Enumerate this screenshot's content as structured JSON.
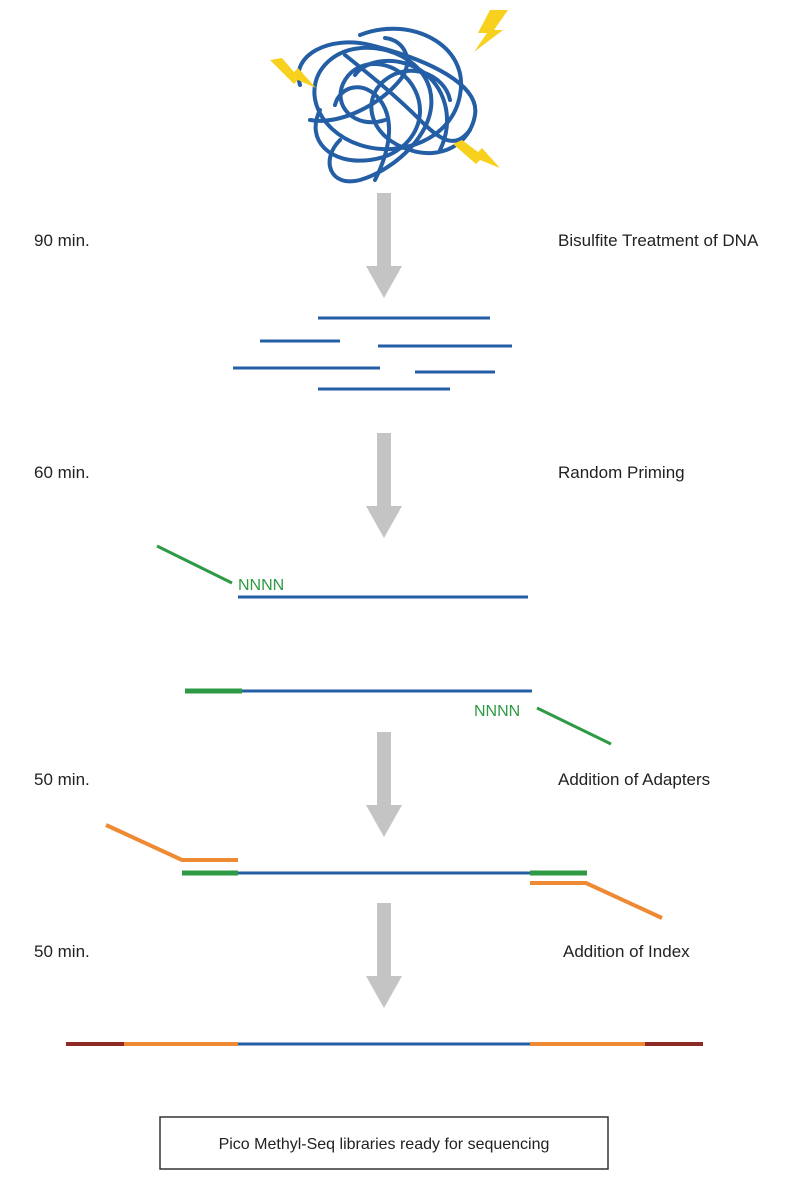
{
  "colors": {
    "dna": "#245ea5",
    "primer": "#2e9a44",
    "adapter": "#ee8a33",
    "index": "#8e2a26",
    "arrow": "#c4c4c4",
    "lightning": "#f7d11e",
    "box_border": "#333333"
  },
  "icons": {
    "dna_tangle": "tangled-dna-icon",
    "lightning": "lightning-bolt-icon",
    "arrow": "down-arrow-icon"
  },
  "steps": [
    {
      "time": "90 min.",
      "label": "Bisulfite Treatment of DNA"
    },
    {
      "time": "60 min.",
      "label": "Random Priming"
    },
    {
      "time": "50 min.",
      "label": "Addition of Adapters"
    },
    {
      "time": "50 min.",
      "label": "Addition of Index"
    }
  ],
  "primer_labels": {
    "top": "NNNN",
    "bottom": "NNNN"
  },
  "final": {
    "text": "Pico Methyl-Seq libraries ready for sequencing"
  }
}
